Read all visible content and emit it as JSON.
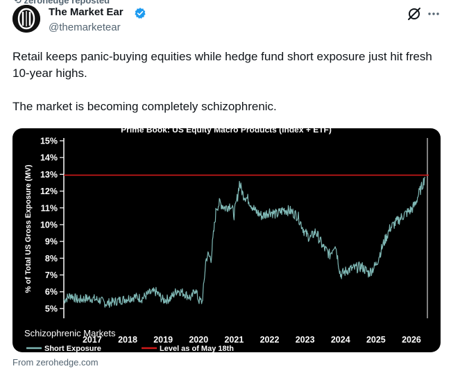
{
  "repost": {
    "text": "zerohedge reposted"
  },
  "author": {
    "name": "The Market Ear",
    "handle": "@themarketear",
    "avatar_icon": "market-ear-logo-icon",
    "verified_icon": "verified-badge-icon"
  },
  "actions": {
    "grok_icon": "grok-icon",
    "more_icon": "more-icon"
  },
  "tweet": {
    "paragraphs": [
      "Retail keeps panic-buying equities while hedge fund short exposure just hit fresh 10-year highs.",
      "The market is becoming completely schizophrenic."
    ]
  },
  "media": {
    "caption": "Schizophrenic Markets"
  },
  "source": {
    "text": "From zerohedge.com"
  },
  "colors": {
    "accent": "#1d9bf0",
    "series": "#7fb8b5",
    "reference_line": "#d11a1a",
    "chart_background": "#000000"
  },
  "chart_data": {
    "type": "line",
    "title": "Prime Book: US Equity Macro Products (Index + ETF)",
    "ylabel": "% of Total US Gross Exposure (MV)",
    "xlabel": "",
    "ylim": [
      4.5,
      15
    ],
    "y_ticks": [
      5,
      6,
      7,
      8,
      9,
      10,
      11,
      12,
      13,
      14,
      15
    ],
    "y_tick_labels": [
      "5%",
      "6%",
      "7%",
      "8%",
      "9%",
      "10%",
      "11%",
      "12%",
      "13%",
      "14%",
      "15%"
    ],
    "xlim": [
      2016.2,
      2026.45
    ],
    "x_tick_labels": [
      "2017",
      "2018",
      "2019",
      "2020",
      "2021",
      "2022",
      "2023",
      "2024",
      "2025",
      "2026"
    ],
    "grid": false,
    "legend_placement": "bottom",
    "series": [
      {
        "name": "Short Exposure",
        "x": [
          2016.2,
          2016.4,
          2016.6,
          2016.8,
          2017.0,
          2017.2,
          2017.4,
          2017.6,
          2017.8,
          2018.0,
          2018.2,
          2018.4,
          2018.6,
          2018.8,
          2019.0,
          2019.2,
          2019.4,
          2019.6,
          2019.8,
          2019.9,
          2020.0,
          2020.1,
          2020.15,
          2020.2,
          2020.25,
          2020.35,
          2020.5,
          2020.6,
          2020.75,
          2020.9,
          2021.0,
          2021.1,
          2021.15,
          2021.25,
          2021.4,
          2021.6,
          2021.8,
          2022.0,
          2022.2,
          2022.4,
          2022.6,
          2022.8,
          2023.0,
          2023.15,
          2023.3,
          2023.5,
          2023.7,
          2023.85,
          2024.0,
          2024.2,
          2024.4,
          2024.6,
          2024.8,
          2025.0,
          2025.2,
          2025.4,
          2025.6,
          2025.8,
          2026.0,
          2026.1,
          2026.2,
          2026.3,
          2026.38
        ],
        "values": [
          5.5,
          5.8,
          5.5,
          5.6,
          5.6,
          5.5,
          5.3,
          5.4,
          5.5,
          5.6,
          5.7,
          5.6,
          5.9,
          6.0,
          5.5,
          5.6,
          6.1,
          5.9,
          5.6,
          6.2,
          5.5,
          5.4,
          6.5,
          7.8,
          8.2,
          8.0,
          11.0,
          11.3,
          11.0,
          11.2,
          10.6,
          11.7,
          12.5,
          11.8,
          11.5,
          10.8,
          10.5,
          10.8,
          10.6,
          10.9,
          10.8,
          10.5,
          9.5,
          9.2,
          9.6,
          8.7,
          8.2,
          8.9,
          7.0,
          7.3,
          7.4,
          7.5,
          7.1,
          7.6,
          8.8,
          9.8,
          10.2,
          10.6,
          10.9,
          11.2,
          11.8,
          12.3,
          12.85
        ]
      },
      {
        "name": "Level as of May 18th",
        "values": [
          12.95
        ]
      }
    ]
  }
}
